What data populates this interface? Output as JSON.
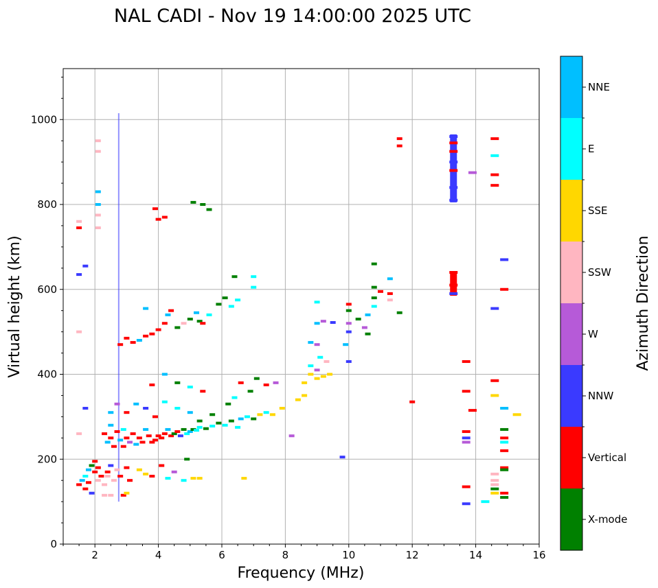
{
  "chart_data": {
    "type": "scatter",
    "title": "NAL CADI - Nov 19 14:00:00 2025 UTC",
    "xlabel": "Frequency (MHz)",
    "ylabel": "Virtual height (km)",
    "xlim": [
      1,
      16
    ],
    "ylim": [
      0,
      1120
    ],
    "xticks": [
      2,
      4,
      6,
      8,
      10,
      12,
      14,
      16
    ],
    "yticks": [
      0,
      200,
      400,
      600,
      800,
      1000
    ],
    "grid": true,
    "colorbar": {
      "label": "Azimuth Direction",
      "categories": [
        {
          "name": "X-mode",
          "color": "#008000"
        },
        {
          "name": "Vertical",
          "color": "#ff0000"
        },
        {
          "name": "NNW",
          "color": "#3a3aff"
        },
        {
          "name": "W",
          "color": "#b65ad8"
        },
        {
          "name": "SSW",
          "color": "#ffb6c1"
        },
        {
          "name": "SSE",
          "color": "#ffd700"
        },
        {
          "name": "E",
          "color": "#00ffff"
        },
        {
          "name": "NNE",
          "color": "#00bfff"
        }
      ]
    },
    "points": [
      [
        1.5,
        140,
        "Vertical"
      ],
      [
        1.6,
        150,
        "NNE"
      ],
      [
        1.7,
        130,
        "Vertical"
      ],
      [
        1.7,
        160,
        "E"
      ],
      [
        1.8,
        145,
        "Vertical"
      ],
      [
        1.8,
        175,
        "NNE"
      ],
      [
        1.9,
        185,
        "X-mode"
      ],
      [
        1.9,
        120,
        "NNW"
      ],
      [
        2.0,
        170,
        "Vertical"
      ],
      [
        2.0,
        195,
        "Vertical"
      ],
      [
        2.1,
        180,
        "Vertical"
      ],
      [
        2.1,
        150,
        "SSW"
      ],
      [
        2.2,
        160,
        "Vertical"
      ],
      [
        2.3,
        140,
        "SSW"
      ],
      [
        2.3,
        115,
        "SSW"
      ],
      [
        2.4,
        170,
        "Vertical"
      ],
      [
        2.4,
        160,
        "SSW"
      ],
      [
        2.5,
        115,
        "SSW"
      ],
      [
        2.5,
        185,
        "NNW"
      ],
      [
        2.6,
        150,
        "SSW"
      ],
      [
        2.7,
        175,
        "SSW"
      ],
      [
        2.8,
        160,
        "Vertical"
      ],
      [
        2.9,
        115,
        "Vertical"
      ],
      [
        3.0,
        180,
        "Vertical"
      ],
      [
        3.0,
        120,
        "SSE"
      ],
      [
        3.1,
        150,
        "Vertical"
      ],
      [
        3.4,
        175,
        "SSE"
      ],
      [
        3.6,
        165,
        "SSE"
      ],
      [
        3.8,
        160,
        "Vertical"
      ],
      [
        4.1,
        185,
        "Vertical"
      ],
      [
        4.3,
        155,
        "E"
      ],
      [
        4.5,
        170,
        "W"
      ],
      [
        4.8,
        150,
        "E"
      ],
      [
        5.1,
        155,
        "SSE"
      ],
      [
        5.3,
        155,
        "SSE"
      ],
      [
        6.7,
        155,
        "SSE"
      ],
      [
        4.9,
        200,
        "X-mode"
      ],
      [
        1.5,
        260,
        "SSW"
      ],
      [
        1.7,
        320,
        "NNW"
      ],
      [
        2.3,
        260,
        "Vertical"
      ],
      [
        2.4,
        240,
        "NNE"
      ],
      [
        2.5,
        250,
        "Vertical"
      ],
      [
        2.5,
        280,
        "NNE"
      ],
      [
        2.6,
        230,
        "Vertical"
      ],
      [
        2.7,
        265,
        "Vertical"
      ],
      [
        2.8,
        245,
        "NNE"
      ],
      [
        2.9,
        230,
        "Vertical"
      ],
      [
        2.9,
        270,
        "E"
      ],
      [
        3.0,
        250,
        "Vertical"
      ],
      [
        3.1,
        240,
        "W"
      ],
      [
        3.2,
        260,
        "Vertical"
      ],
      [
        3.3,
        235,
        "NNE"
      ],
      [
        3.4,
        250,
        "Vertical"
      ],
      [
        3.5,
        240,
        "Vertical"
      ],
      [
        3.6,
        270,
        "NNE"
      ],
      [
        3.7,
        255,
        "Vertical"
      ],
      [
        3.8,
        240,
        "Vertical"
      ],
      [
        3.9,
        245,
        "Vertical"
      ],
      [
        4.0,
        255,
        "Vertical"
      ],
      [
        4.1,
        250,
        "Vertical"
      ],
      [
        4.2,
        260,
        "Vertical"
      ],
      [
        4.3,
        270,
        "NNE"
      ],
      [
        4.4,
        255,
        "Vertical"
      ],
      [
        4.5,
        260,
        "X-mode"
      ],
      [
        4.6,
        265,
        "Vertical"
      ],
      [
        4.7,
        255,
        "NNW"
      ],
      [
        4.8,
        270,
        "X-mode"
      ],
      [
        4.9,
        260,
        "E"
      ],
      [
        5.0,
        265,
        "NNE"
      ],
      [
        5.1,
        270,
        "X-mode"
      ],
      [
        5.2,
        268,
        "E"
      ],
      [
        5.3,
        275,
        "E"
      ],
      [
        5.5,
        272,
        "X-mode"
      ],
      [
        5.7,
        278,
        "E"
      ],
      [
        5.9,
        285,
        "X-mode"
      ],
      [
        6.1,
        280,
        "E"
      ],
      [
        6.3,
        290,
        "X-mode"
      ],
      [
        6.5,
        275,
        "E"
      ],
      [
        6.6,
        295,
        "NNE"
      ],
      [
        6.8,
        300,
        "E"
      ],
      [
        7.0,
        295,
        "X-mode"
      ],
      [
        7.2,
        305,
        "SSE"
      ],
      [
        7.4,
        310,
        "E"
      ],
      [
        7.6,
        305,
        "SSE"
      ],
      [
        7.9,
        320,
        "SSE"
      ],
      [
        2.5,
        310,
        "NNE"
      ],
      [
        2.7,
        330,
        "W"
      ],
      [
        3.0,
        310,
        "Vertical"
      ],
      [
        3.3,
        330,
        "NNE"
      ],
      [
        3.6,
        320,
        "NNW"
      ],
      [
        3.9,
        300,
        "Vertical"
      ],
      [
        4.2,
        335,
        "E"
      ],
      [
        4.6,
        320,
        "E"
      ],
      [
        5.0,
        310,
        "NNE"
      ],
      [
        5.3,
        290,
        "X-mode"
      ],
      [
        5.7,
        305,
        "X-mode"
      ],
      [
        6.2,
        330,
        "X-mode"
      ],
      [
        6.4,
        345,
        "E"
      ],
      [
        6.6,
        380,
        "Vertical"
      ],
      [
        6.9,
        360,
        "X-mode"
      ],
      [
        7.1,
        390,
        "X-mode"
      ],
      [
        7.4,
        375,
        "Vertical"
      ],
      [
        7.7,
        380,
        "W"
      ],
      [
        3.8,
        375,
        "Vertical"
      ],
      [
        4.2,
        400,
        "NNE"
      ],
      [
        4.6,
        380,
        "X-mode"
      ],
      [
        5.0,
        370,
        "E"
      ],
      [
        5.4,
        360,
        "Vertical"
      ],
      [
        8.2,
        255,
        "W"
      ],
      [
        8.4,
        340,
        "SSE"
      ],
      [
        8.6,
        350,
        "SSE"
      ],
      [
        8.6,
        380,
        "SSE"
      ],
      [
        8.8,
        400,
        "SSE"
      ],
      [
        8.8,
        420,
        "E"
      ],
      [
        9.0,
        390,
        "SSE"
      ],
      [
        9.0,
        410,
        "W"
      ],
      [
        9.1,
        440,
        "E"
      ],
      [
        9.0,
        470,
        "W"
      ],
      [
        9.2,
        395,
        "SSE"
      ],
      [
        9.3,
        430,
        "SSW"
      ],
      [
        9.4,
        400,
        "SSE"
      ],
      [
        8.8,
        475,
        "NNE"
      ],
      [
        9.0,
        520,
        "NNE"
      ],
      [
        9.2,
        525,
        "W"
      ],
      [
        9.0,
        570,
        "E"
      ],
      [
        9.5,
        522,
        "NNW"
      ],
      [
        9.9,
        470,
        "NNE"
      ],
      [
        10.0,
        520,
        "W"
      ],
      [
        10.0,
        500,
        "NNW"
      ],
      [
        10.0,
        550,
        "X-mode"
      ],
      [
        10.0,
        565,
        "Vertical"
      ],
      [
        10.0,
        430,
        "NNW"
      ],
      [
        10.3,
        530,
        "X-mode"
      ],
      [
        10.5,
        510,
        "W"
      ],
      [
        10.6,
        540,
        "NNE"
      ],
      [
        10.6,
        495,
        "X-mode"
      ],
      [
        10.8,
        560,
        "E"
      ],
      [
        10.8,
        580,
        "X-mode"
      ],
      [
        10.8,
        605,
        "X-mode"
      ],
      [
        10.8,
        660,
        "X-mode"
      ],
      [
        11.0,
        595,
        "Vertical"
      ],
      [
        11.3,
        590,
        "Vertical"
      ],
      [
        11.3,
        575,
        "SSW"
      ],
      [
        11.3,
        625,
        "NNE"
      ],
      [
        11.6,
        545,
        "X-mode"
      ],
      [
        11.6,
        955,
        "Vertical"
      ],
      [
        11.6,
        938,
        "Vertical"
      ],
      [
        12.0,
        335,
        "Vertical"
      ],
      [
        9.8,
        205,
        "NNW"
      ],
      [
        2.8,
        470,
        "Vertical"
      ],
      [
        3.0,
        485,
        "Vertical"
      ],
      [
        3.2,
        475,
        "Vertical"
      ],
      [
        3.4,
        480,
        "NNE"
      ],
      [
        3.6,
        490,
        "Vertical"
      ],
      [
        3.8,
        495,
        "Vertical"
      ],
      [
        4.0,
        505,
        "Vertical"
      ],
      [
        4.2,
        520,
        "Vertical"
      ],
      [
        4.3,
        540,
        "NNE"
      ],
      [
        4.6,
        510,
        "X-mode"
      ],
      [
        4.8,
        520,
        "SSW"
      ],
      [
        5.0,
        530,
        "X-mode"
      ],
      [
        5.2,
        545,
        "NNE"
      ],
      [
        5.3,
        525,
        "X-mode"
      ],
      [
        5.4,
        520,
        "Vertical"
      ],
      [
        5.6,
        540,
        "E"
      ],
      [
        5.9,
        565,
        "X-mode"
      ],
      [
        6.1,
        580,
        "X-mode"
      ],
      [
        6.3,
        560,
        "E"
      ],
      [
        6.5,
        575,
        "E"
      ],
      [
        6.4,
        630,
        "X-mode"
      ],
      [
        7.0,
        630,
        "E"
      ],
      [
        7.0,
        605,
        "E"
      ],
      [
        3.6,
        555,
        "NNE"
      ],
      [
        4.4,
        550,
        "Vertical"
      ],
      [
        1.5,
        760,
        "SSW"
      ],
      [
        1.5,
        745,
        "Vertical"
      ],
      [
        1.5,
        635,
        "NNW"
      ],
      [
        1.5,
        500,
        "SSW"
      ],
      [
        1.7,
        655,
        "NNW"
      ],
      [
        2.1,
        950,
        "SSW"
      ],
      [
        2.1,
        925,
        "SSW"
      ],
      [
        2.1,
        830,
        "NNE"
      ],
      [
        2.1,
        800,
        "NNE"
      ],
      [
        2.1,
        775,
        "SSW"
      ],
      [
        2.1,
        745,
        "SSW"
      ],
      [
        3.9,
        790,
        "Vertical"
      ],
      [
        4.0,
        765,
        "Vertical"
      ],
      [
        4.2,
        770,
        "Vertical"
      ],
      [
        5.1,
        805,
        "X-mode"
      ],
      [
        5.4,
        800,
        "X-mode"
      ],
      [
        5.6,
        788,
        "X-mode"
      ],
      [
        13.3,
        960,
        "NNW"
      ],
      [
        13.3,
        900,
        "NNW"
      ],
      [
        13.3,
        840,
        "NNW"
      ],
      [
        13.3,
        810,
        "NNW"
      ],
      [
        13.3,
        945,
        "Vertical"
      ],
      [
        13.3,
        925,
        "Vertical"
      ],
      [
        13.3,
        880,
        "Vertical"
      ],
      [
        13.3,
        640,
        "Vertical"
      ],
      [
        13.3,
        610,
        "Vertical"
      ],
      [
        13.3,
        590,
        "NNW"
      ],
      [
        13.9,
        875,
        "W"
      ],
      [
        14.6,
        955,
        "Vertical"
      ],
      [
        14.6,
        915,
        "E"
      ],
      [
        14.6,
        870,
        "Vertical"
      ],
      [
        14.6,
        845,
        "Vertical"
      ],
      [
        14.9,
        670,
        "NNW"
      ],
      [
        14.9,
        600,
        "Vertical"
      ],
      [
        14.6,
        555,
        "NNW"
      ],
      [
        13.7,
        430,
        "Vertical"
      ],
      [
        14.6,
        385,
        "Vertical"
      ],
      [
        13.7,
        360,
        "Vertical"
      ],
      [
        14.6,
        350,
        "SSE"
      ],
      [
        13.9,
        315,
        "Vertical"
      ],
      [
        14.9,
        320,
        "NNE"
      ],
      [
        15.3,
        305,
        "SSE"
      ],
      [
        13.7,
        265,
        "Vertical"
      ],
      [
        13.7,
        250,
        "NNW"
      ],
      [
        13.7,
        240,
        "W"
      ],
      [
        14.9,
        270,
        "X-mode"
      ],
      [
        14.9,
        250,
        "Vertical"
      ],
      [
        14.9,
        240,
        "E"
      ],
      [
        14.9,
        220,
        "Vertical"
      ],
      [
        14.9,
        180,
        "Vertical"
      ],
      [
        14.9,
        175,
        "X-mode"
      ],
      [
        14.6,
        165,
        "SSW"
      ],
      [
        14.6,
        150,
        "SSW"
      ],
      [
        14.6,
        140,
        "SSW"
      ],
      [
        14.6,
        130,
        "X-mode"
      ],
      [
        14.6,
        120,
        "SSE"
      ],
      [
        14.9,
        120,
        "Vertical"
      ],
      [
        14.9,
        110,
        "X-mode"
      ],
      [
        13.7,
        135,
        "Vertical"
      ],
      [
        13.7,
        95,
        "NNW"
      ],
      [
        14.3,
        100,
        "E"
      ]
    ],
    "bars": [
      [
        13.3,
        805,
        965,
        "NNW"
      ],
      [
        13.3,
        585,
        640,
        "Vertical"
      ],
      [
        2.75,
        100,
        1015,
        "NNW"
      ]
    ]
  }
}
